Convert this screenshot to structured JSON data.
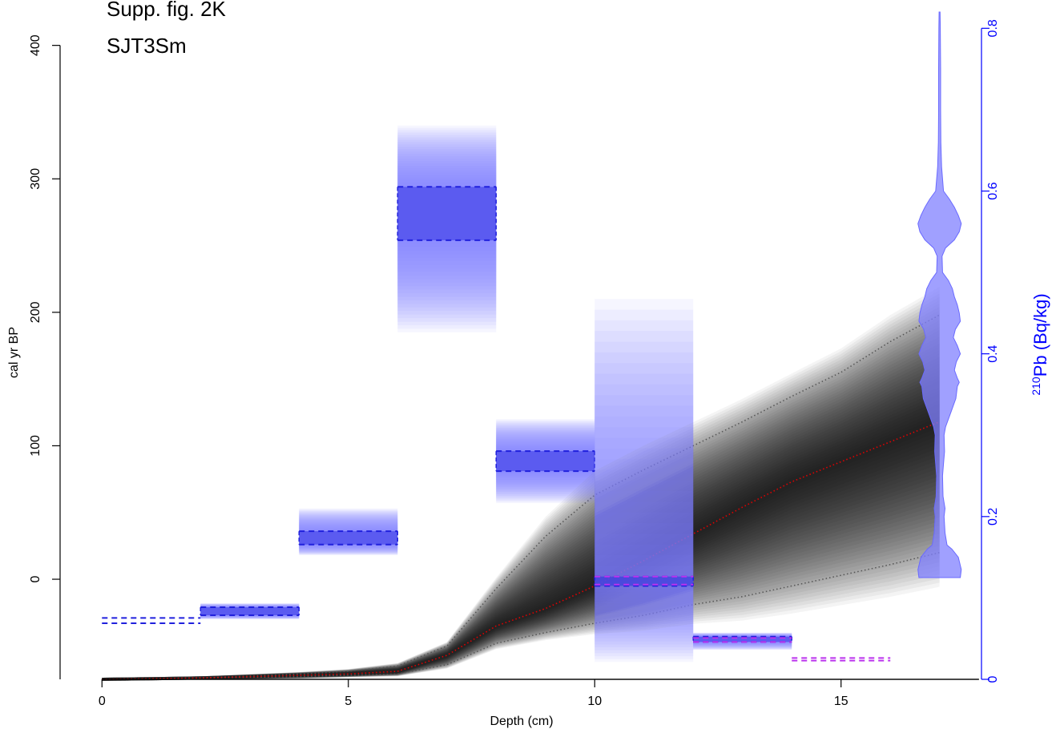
{
  "chart_data": {
    "type": "area",
    "title": "Supp. fig. 2K",
    "subtitle": "SJT3Sm",
    "xlabel": "Depth (cm)",
    "ylabel": "cal yr BP",
    "y2label_iso": "210",
    "y2label_rest": "Pb (Bq/kg)",
    "xlim": [
      -0.85,
      17.85
    ],
    "ylim": [
      -75,
      425
    ],
    "y2lim": [
      0,
      0.82
    ],
    "x_ticks": [
      0,
      5,
      10,
      15
    ],
    "y_ticks": [
      0,
      100,
      200,
      300,
      400
    ],
    "y2_ticks": [
      0,
      0.2,
      0.4,
      0.6,
      0.8
    ],
    "x_tick_labels": [
      "0",
      "5",
      "10",
      "15"
    ],
    "y_tick_labels": [
      "0",
      "100",
      "200",
      "300",
      "400"
    ],
    "y2_tick_labels": [
      "0",
      "0.2",
      "0.4",
      "0.6",
      "0.8"
    ],
    "colors": {
      "age_model": "#000000",
      "median": "#e00000",
      "range": "#555555",
      "pb": "#2020dd",
      "pb_fill": "#8080ff",
      "supported": "#bb33ee",
      "axis": "#000000",
      "axis2": "#0000ff"
    },
    "age_model": {
      "depth": [
        0,
        2,
        4,
        5,
        6,
        7,
        8,
        9,
        10,
        11,
        12,
        13,
        14,
        15,
        16,
        17
      ],
      "median": [
        -75,
        -74,
        -72,
        -71,
        -69,
        -57,
        -35,
        -22,
        -5,
        14,
        34,
        54,
        73,
        88,
        103,
        118
      ],
      "lower": [
        -75,
        -74,
        -73,
        -72,
        -71,
        -64,
        -48,
        -40,
        -33,
        -27,
        -19,
        -13,
        -5,
        3,
        11,
        20
      ],
      "upper": [
        -75,
        -74,
        -71,
        -69,
        -65,
        -50,
        -7,
        32,
        63,
        82,
        100,
        118,
        137,
        155,
        178,
        198
      ]
    },
    "pb210_samples": [
      {
        "depth_top": 0,
        "depth_bottom": 2,
        "age_low": -33,
        "age_high": -29,
        "dashed_only": true
      },
      {
        "depth_top": 2,
        "depth_bottom": 4,
        "age_low": -27,
        "age_high": -21,
        "spread_low": -30,
        "spread_high": -18
      },
      {
        "depth_top": 4,
        "depth_bottom": 6,
        "age_low": 26,
        "age_high": 36,
        "spread_low": 18,
        "spread_high": 53
      },
      {
        "depth_top": 6,
        "depth_bottom": 8,
        "age_low": 254,
        "age_high": 294,
        "spread_low": 185,
        "spread_high": 340
      },
      {
        "depth_top": 8,
        "depth_bottom": 10,
        "age_low": 81,
        "age_high": 96,
        "spread_low": 57,
        "spread_high": 120
      },
      {
        "depth_top": 10,
        "depth_bottom": 12,
        "age_low": -5,
        "age_high": 2,
        "spread_low": -62,
        "spread_high": 210
      },
      {
        "depth_top": 12,
        "depth_bottom": 14,
        "age_low": -47,
        "age_high": -43,
        "spread_low": -53,
        "spread_high": -40
      }
    ],
    "supported_pb": [
      {
        "depth_top": 10,
        "depth_bottom": 12,
        "level": -4
      },
      {
        "depth_top": 10,
        "depth_bottom": 12,
        "level": 2
      },
      {
        "depth_top": 12,
        "depth_bottom": 14,
        "level": -47
      },
      {
        "depth_top": 12,
        "depth_bottom": 14,
        "level": -44
      },
      {
        "depth_top": 14,
        "depth_bottom": 16,
        "level": -61
      },
      {
        "depth_top": 14,
        "depth_bottom": 16,
        "level": -59
      }
    ],
    "pb_violin": {
      "depth_center": 17,
      "profile_activity": [
        0.125,
        0.135,
        0.15,
        0.16,
        0.165,
        0.18,
        0.19,
        0.2,
        0.21,
        0.225,
        0.25,
        0.265,
        0.28,
        0.3,
        0.31,
        0.33,
        0.345,
        0.36,
        0.365,
        0.37,
        0.38,
        0.39,
        0.4,
        0.41,
        0.42,
        0.43,
        0.44,
        0.45,
        0.46,
        0.47,
        0.48,
        0.49,
        0.5,
        0.52,
        0.53,
        0.54,
        0.55,
        0.56,
        0.57,
        0.58,
        0.59,
        0.6,
        0.63,
        0.66,
        0.7,
        0.75,
        0.8,
        0.82
      ],
      "profile_halfwidth_cm": [
        0.42,
        0.44,
        0.38,
        0.25,
        0.15,
        0.11,
        0.1,
        0.09,
        0.11,
        0.07,
        0.06,
        0.08,
        0.1,
        0.09,
        0.12,
        0.24,
        0.33,
        0.36,
        0.4,
        0.36,
        0.3,
        0.34,
        0.42,
        0.36,
        0.28,
        0.32,
        0.42,
        0.4,
        0.36,
        0.3,
        0.26,
        0.18,
        0.06,
        0.05,
        0.12,
        0.3,
        0.4,
        0.44,
        0.38,
        0.3,
        0.2,
        0.08,
        0.04,
        0.025,
        0.02,
        0.02,
        0.015,
        0.01
      ]
    }
  }
}
